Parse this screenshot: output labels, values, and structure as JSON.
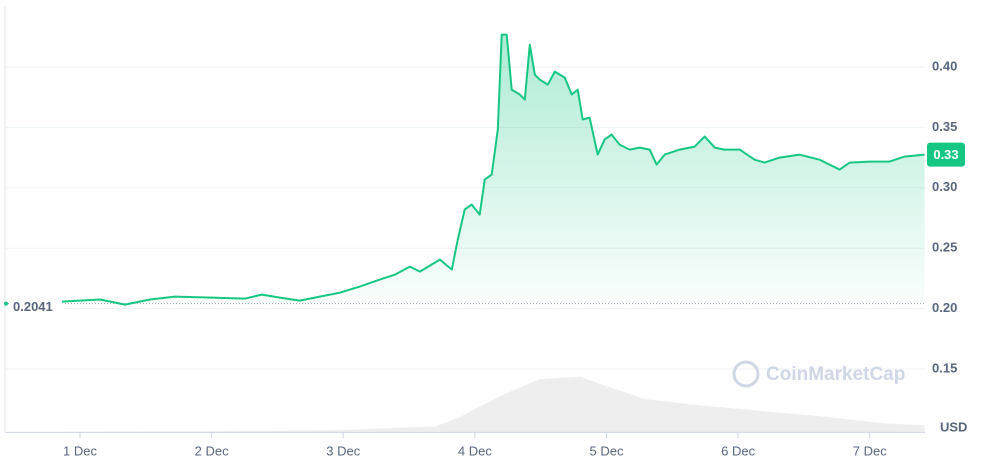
{
  "chart_data": {
    "type": "line",
    "xlim": [
      0.43,
      7.42
    ],
    "xticks": [
      {
        "value": 1,
        "label": "1 Dec"
      },
      {
        "value": 2,
        "label": "2 Dec"
      },
      {
        "value": 3,
        "label": "3 Dec"
      },
      {
        "value": 4,
        "label": "4 Dec"
      },
      {
        "value": 5,
        "label": "5 Dec"
      },
      {
        "value": 6,
        "label": "6 Dec"
      },
      {
        "value": 7,
        "label": "7 Dec"
      }
    ],
    "ylim": [
      0.1,
      0.45
    ],
    "yticks": [
      {
        "value": 0.15,
        "label": "0.15"
      },
      {
        "value": 0.2,
        "label": "0.20"
      },
      {
        "value": 0.25,
        "label": "0.25"
      },
      {
        "value": 0.3,
        "label": "0.30"
      },
      {
        "value": 0.35,
        "label": "0.35"
      },
      {
        "value": 0.4,
        "label": "0.40"
      }
    ],
    "grid": true,
    "y_unit": "USD",
    "watermark": "CoinMarketCap",
    "start_price": {
      "value": 0.2041,
      "label": "0.2041"
    },
    "current_price": {
      "value": 0.3275,
      "label": "0.33"
    },
    "series": [
      {
        "color": "#16c784",
        "x": [
          0.863,
          1.152,
          1.342,
          1.532,
          1.721,
          2.002,
          2.253,
          2.382,
          2.519,
          2.67,
          2.822,
          2.974,
          3.126,
          3.278,
          3.392,
          3.506,
          3.582,
          3.734,
          3.825,
          3.87,
          3.923,
          3.976,
          4.037,
          4.075,
          4.128,
          4.174,
          4.204,
          4.242,
          4.28,
          4.341,
          4.379,
          4.417,
          4.455,
          4.493,
          4.554,
          4.607,
          4.683,
          4.736,
          4.781,
          4.819,
          4.872,
          4.933,
          4.986,
          5.039,
          5.1,
          5.176,
          5.252,
          5.328,
          5.381,
          5.442,
          5.556,
          5.67,
          5.746,
          5.822,
          5.897,
          6.011,
          6.125,
          6.201,
          6.315,
          6.467,
          6.619,
          6.771,
          6.847,
          6.999,
          7.15,
          7.264,
          7.416
        ],
        "values": [
          0.2058,
          0.2075,
          0.2033,
          0.2075,
          0.2099,
          0.2091,
          0.2083,
          0.2116,
          0.2091,
          0.2066,
          0.2099,
          0.2132,
          0.2182,
          0.224,
          0.2281,
          0.2348,
          0.2306,
          0.2406,
          0.2323,
          0.2571,
          0.282,
          0.2861,
          0.2778,
          0.3068,
          0.3109,
          0.3482,
          0.4268,
          0.4268,
          0.3813,
          0.3772,
          0.373,
          0.4185,
          0.3937,
          0.3896,
          0.3854,
          0.3962,
          0.3912,
          0.3772,
          0.3813,
          0.3565,
          0.3581,
          0.3275,
          0.3399,
          0.344,
          0.3358,
          0.3316,
          0.3333,
          0.3316,
          0.3192,
          0.3275,
          0.3316,
          0.3341,
          0.3424,
          0.3333,
          0.3316,
          0.3316,
          0.3233,
          0.3209,
          0.325,
          0.3275,
          0.3233,
          0.3151,
          0.3209,
          0.3217,
          0.3217,
          0.3258,
          0.3275
        ]
      }
    ],
    "volume": {
      "color": "#eeeeee",
      "ylim": [
        0,
        100
      ],
      "x": [
        0.863,
        2.0,
        3.0,
        3.7,
        3.885,
        4.19,
        4.49,
        4.8,
        5.02,
        5.3,
        5.7,
        6.2,
        6.7,
        7.1,
        7.416
      ],
      "values": [
        1,
        2,
        4,
        10,
        25,
        60,
        88,
        92,
        75,
        55,
        45,
        35,
        25,
        15,
        12
      ]
    }
  }
}
